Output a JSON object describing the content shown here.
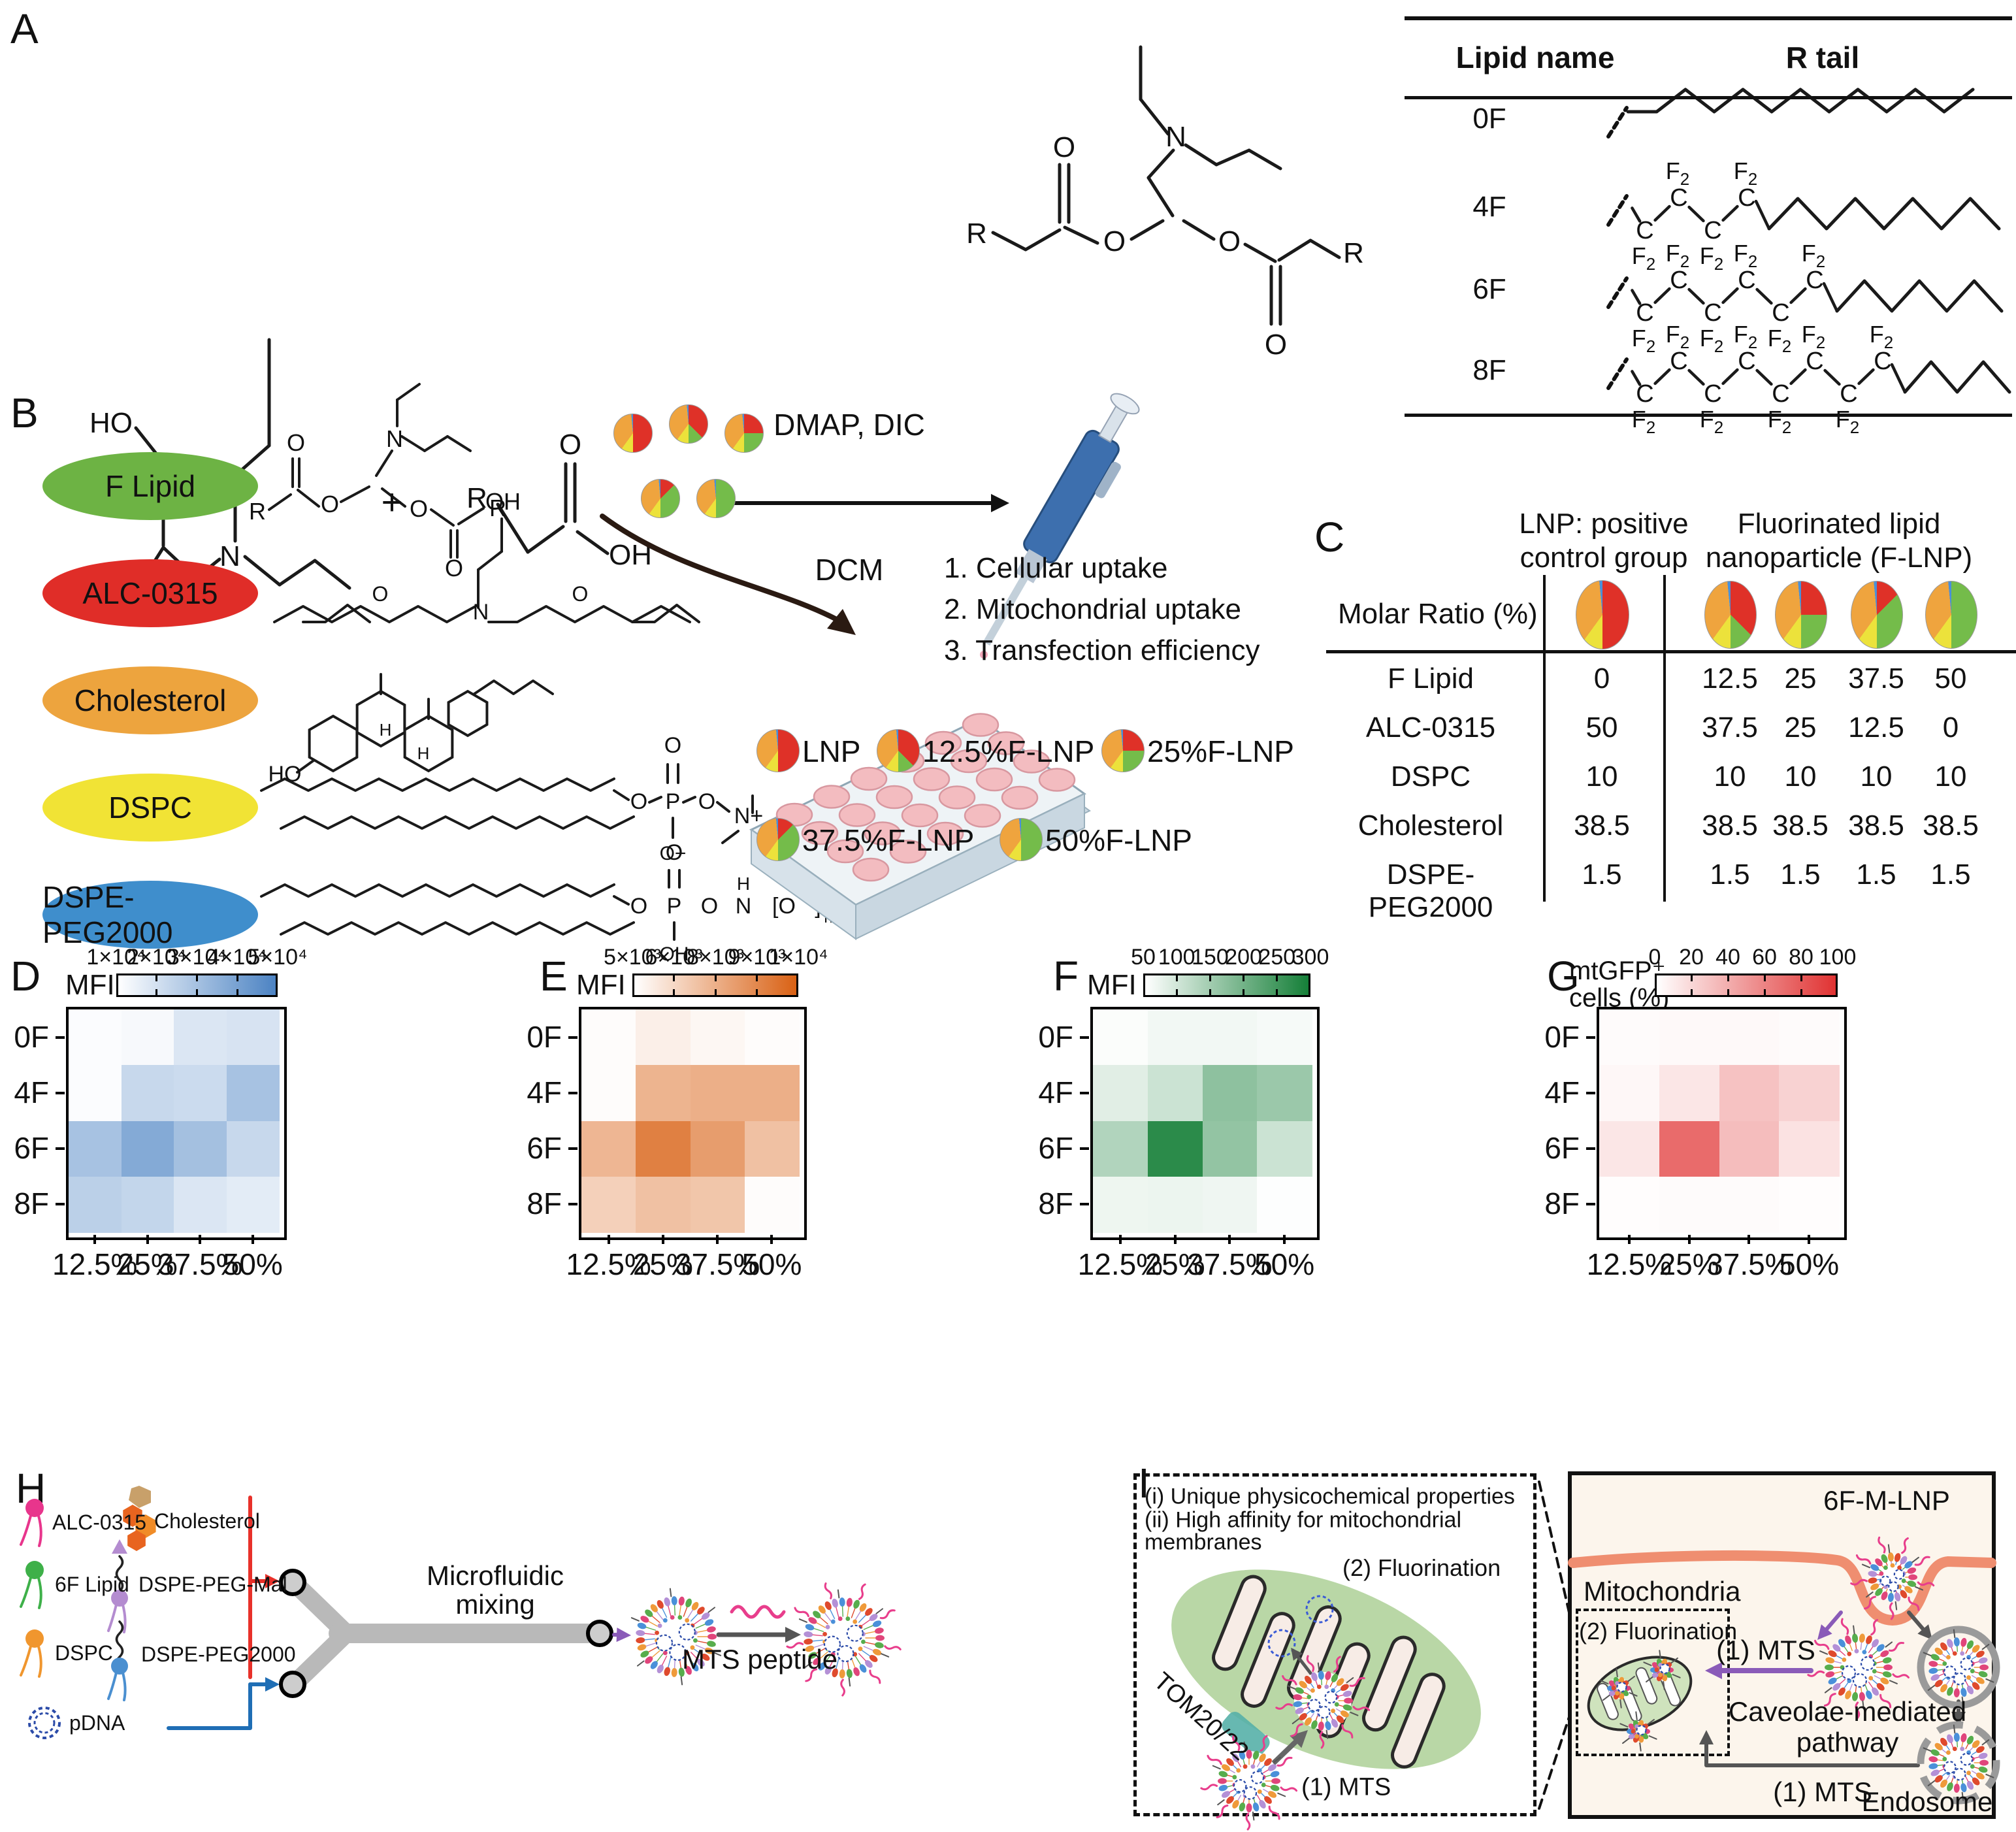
{
  "palette": {
    "lnp_red": "#df3128",
    "f_green": "#74bc4a",
    "dspc_yellow": "#ece23b",
    "chol_orange": "#efa43e",
    "peg_blue": "#4a90d9",
    "membrane_salmon": "#ef8e70",
    "mito_green": "#b9d7a6",
    "box_cream": "#fcf5ec",
    "particle": [
      "#e0457b",
      "#57ad4c",
      "#ef9a3a",
      "#df4a2d",
      "#b490d6",
      "#4a90d9"
    ]
  },
  "formulations": {
    "order": [
      "ALC-0315",
      "F Lipid",
      "DSPC",
      "Cholesterol",
      "DSPE-PEG2000"
    ],
    "colors": [
      "#df3128",
      "#74bc4a",
      "#ece23b",
      "#efa43e",
      "#4a90d9"
    ],
    "mixes": {
      "LNP": [
        50,
        0,
        10,
        38.5,
        1.5
      ],
      "12.5": [
        37.5,
        12.5,
        10,
        38.5,
        1.5
      ],
      "25": [
        25,
        25,
        10,
        38.5,
        1.5
      ],
      "37.5": [
        12.5,
        37.5,
        10,
        38.5,
        1.5
      ],
      "50": [
        0,
        50,
        10,
        38.5,
        1.5
      ]
    }
  },
  "panelA": {
    "label": "A",
    "reaction": {
      "plus": "+",
      "cond_top": "DMAP, DIC",
      "cond_bottom": "DCM",
      "diol": {
        "ho_top": "HO",
        "ho_bottom": "HO",
        "n": "N"
      },
      "acid": {
        "r": "R",
        "o": "O",
        "oh": "OH"
      },
      "product": {
        "n": "N",
        "o1": "O",
        "o2": "O",
        "o3": "O",
        "o4": "O",
        "r_left": "R",
        "r_right": "R"
      }
    },
    "table": {
      "headers": [
        "Lipid name",
        "R tail"
      ],
      "c": "C",
      "f": "F",
      "two": "2",
      "rows": [
        {
          "name": "0F",
          "cf2": 0,
          "zig": 12
        },
        {
          "name": "4F",
          "cf2": 4,
          "zig": 8
        },
        {
          "name": "6F",
          "cf2": 6,
          "zig": 6
        },
        {
          "name": "8F",
          "cf2": 8,
          "zig": 4
        }
      ]
    }
  },
  "panelB": {
    "label": "B",
    "components": [
      {
        "name": "F Lipid",
        "color": "#6db344"
      },
      {
        "name": "ALC-0315",
        "color": "#e02d28"
      },
      {
        "name": "Cholesterol",
        "color": "#eda43e"
      },
      {
        "name": "DSPC",
        "color": "#f1e335"
      },
      {
        "name": "DSPE-PEG2000",
        "color": "#3f8ecc"
      }
    ],
    "atoms": {
      "o": "O",
      "p": "P",
      "oh": "OH",
      "ho": "HO",
      "n": "N",
      "nplus": "N+",
      "ominus": "O−",
      "h": "H",
      "r": "R",
      "bracket": "[O",
      "bracket_close": "]",
      "sub_n": "n"
    },
    "steps": [
      "1. Cellular uptake",
      "2. Mitochondrial uptake",
      "3. Transfection efficiency"
    ],
    "legend": [
      {
        "label": "LNP",
        "key": "LNP"
      },
      {
        "label": "12.5%F-LNP",
        "key": "12.5"
      },
      {
        "label": "25%F-LNP",
        "key": "25"
      },
      {
        "label": "37.5%F-LNP",
        "key": "37.5"
      },
      {
        "label": "50%F-LNP",
        "key": "50"
      }
    ],
    "cluster_keys": [
      "LNP",
      "12.5",
      "25",
      "37.5",
      "50"
    ]
  },
  "panelC": {
    "label": "C",
    "group_headers": [
      [
        "LNP: positive",
        "control group"
      ],
      [
        "Fluorinated lipid",
        "nanoparticle (F-LNP)"
      ]
    ],
    "row_header": "Molar Ratio (%)",
    "pie_keys": [
      "LNP",
      "12.5",
      "25",
      "37.5",
      "50"
    ],
    "rows": [
      {
        "name": "F  Lipid",
        "control": "0",
        "flnp": [
          "12.5",
          "25",
          "37.5",
          "50"
        ]
      },
      {
        "name": "ALC-0315",
        "control": "50",
        "flnp": [
          "37.5",
          "25",
          "12.5",
          "0"
        ]
      },
      {
        "name": "DSPC",
        "control": "10",
        "flnp": [
          "10",
          "10",
          "10",
          "10"
        ]
      },
      {
        "name": "Cholesterol",
        "control": "38.5",
        "flnp": [
          "38.5",
          "38.5",
          "38.5",
          "38.5"
        ]
      },
      {
        "name": "DSPE-PEG2000",
        "control": "1.5",
        "flnp": [
          "1.5",
          "1.5",
          "1.5",
          "1.5"
        ]
      }
    ]
  },
  "chart_data": [
    {
      "panel": "D",
      "type": "heatmap",
      "legend_label": "MFI",
      "colorbar_ticks": [
        "1×10⁴",
        "2×10⁴",
        "3×10⁴",
        "4×10⁴",
        "5×10⁴"
      ],
      "rows": [
        "0F",
        "4F",
        "6F",
        "8F"
      ],
      "cols": [
        "12.5%",
        "25%",
        "37.5%",
        "50%"
      ],
      "values": [
        [
          6000,
          7000,
          14000,
          15000
        ],
        [
          6000,
          19000,
          18000,
          27000
        ],
        [
          27000,
          36000,
          28000,
          19000
        ],
        [
          22000,
          20000,
          14000,
          12000
        ]
      ],
      "scale_min": 5000,
      "scale_max": 50000,
      "max_color": "#4c83c3"
    },
    {
      "panel": "E",
      "type": "heatmap",
      "legend_label": "MFI",
      "colorbar_ticks": [
        "5×10³",
        "6×10³",
        "8×10³",
        "9×10³",
        "1×10⁴"
      ],
      "rows": [
        "0F",
        "4F",
        "6F",
        "8F"
      ],
      "cols": [
        "12.5%",
        "25%",
        "37.5%",
        "50%"
      ],
      "values": [
        [
          4500,
          5000,
          4700,
          4500
        ],
        [
          4500,
          7300,
          7500,
          7500
        ],
        [
          7200,
          9300,
          8200,
          6800
        ],
        [
          6200,
          6800,
          6600,
          4500
        ]
      ],
      "scale_min": 4400,
      "scale_max": 10500,
      "max_color": "#d96114"
    },
    {
      "panel": "F",
      "type": "heatmap",
      "legend_label": "MFI",
      "colorbar_ticks": [
        "50",
        "100",
        "150",
        "200",
        "250",
        "300"
      ],
      "rows": [
        "0F",
        "4F",
        "6F",
        "8F"
      ],
      "cols": [
        "12.5%",
        "25%",
        "37.5%",
        "50%"
      ],
      "values": [
        [
          45,
          55,
          55,
          50
        ],
        [
          75,
          100,
          170,
          155
        ],
        [
          130,
          285,
          165,
          100
        ],
        [
          60,
          62,
          58,
          42
        ]
      ],
      "scale_min": 40,
      "scale_max": 310,
      "max_color": "#157f38"
    },
    {
      "panel": "G",
      "type": "heatmap",
      "legend_label_lines": [
        "mtGFP⁺",
        "cells (%)"
      ],
      "colorbar_ticks": [
        "0",
        "20",
        "40",
        "60",
        "80",
        "100"
      ],
      "rows": [
        "0F",
        "4F",
        "6F",
        "8F"
      ],
      "cols": [
        "12.5%",
        "25%",
        "37.5%",
        "50%"
      ],
      "values": [
        [
          2,
          3,
          3,
          2
        ],
        [
          4,
          12,
          30,
          22
        ],
        [
          12,
          72,
          32,
          14
        ],
        [
          1,
          2,
          2,
          1
        ]
      ],
      "scale_min": 0,
      "scale_max": 100,
      "max_color": "#e03232"
    }
  ],
  "panelH": {
    "label": "H",
    "items": [
      {
        "label": "ALC-0315",
        "type": "lipid",
        "color": "#e8358c"
      },
      {
        "label": "Cholesterol",
        "type": "chol",
        "color": "#f08c28"
      },
      {
        "label": "6F Lipid",
        "type": "lipid",
        "color": "#3eb049"
      },
      {
        "label": "DSPE-PEG-Mal",
        "type": "pegmal",
        "color": "#b48cd0"
      },
      {
        "label": "DSPC",
        "type": "lipid",
        "color": "#f0962e"
      },
      {
        "label": "DSPE-PEG2000",
        "type": "peg",
        "color": "#4a8fd0"
      },
      {
        "label": "pDNA",
        "type": "pdna",
        "color": "#2b4ba8"
      }
    ],
    "mixer_lines": [
      "Microfluidic",
      "mixing"
    ],
    "mts_label": "MTS peptide"
  },
  "panelI": {
    "label": "I",
    "left_box": {
      "lines": [
        "(i) Unique physicochemical properties",
        "(ii) High affinity for mitochondrial",
        "membranes"
      ],
      "fluorination": "(2) Fluorination",
      "tom": "TOM20/22",
      "mts": "(1) MTS"
    },
    "right_box": {
      "title": "6F-M-LNP",
      "mitochondria": "Mitochondria",
      "fluorination": "(2) Fluorination",
      "mts1": "(1) MTS",
      "caveolae_lines": [
        "Caveolae-mediated",
        "pathway"
      ],
      "mts2": "(1) MTS",
      "endosome": "Endosome"
    }
  }
}
